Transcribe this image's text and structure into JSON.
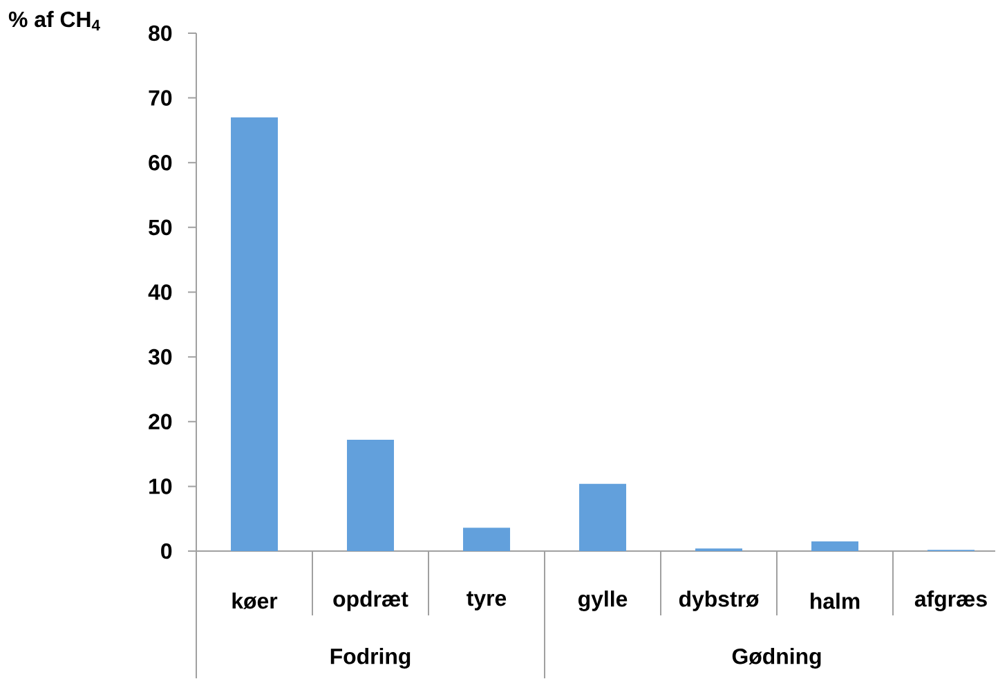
{
  "chart_data": {
    "type": "bar",
    "ylabel": "% af CH$_{4}$",
    "categories": [
      "køer",
      "opdræt",
      "tyre",
      "gylle",
      "dybstrø",
      "halm",
      "afgræs"
    ],
    "values": [
      67,
      17.2,
      3.6,
      10.4,
      0.4,
      1.5,
      0.2
    ],
    "color": "#62a0dc",
    "ylim": [
      0,
      80
    ],
    "yticks": [
      0,
      10,
      20,
      30,
      40,
      50,
      60,
      70,
      80
    ],
    "annotations": [
      "Fodring",
      "Gødning"
    ]
  }
}
